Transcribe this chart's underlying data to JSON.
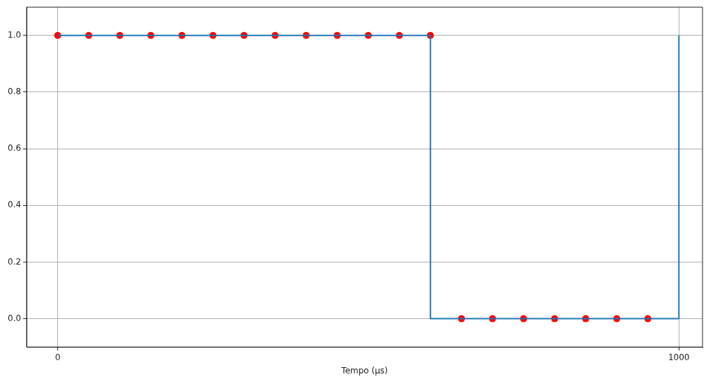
{
  "chart_data": {
    "type": "line",
    "xlabel": "Tempo (µs)",
    "xlim": [
      -50,
      1038
    ],
    "xticks": [
      0,
      1000
    ],
    "ylim": [
      -0.1,
      1.1
    ],
    "yticks": [
      {
        "value": 0,
        "label": "0.0"
      },
      {
        "value": 0.2,
        "label": "0.2"
      },
      {
        "value": 0.4,
        "label": "0.4"
      },
      {
        "value": 0.6,
        "label": "0.6"
      },
      {
        "value": 0.8,
        "label": "0.8"
      },
      {
        "value": 1,
        "label": "1.0"
      }
    ],
    "grid": true,
    "legend": false,
    "series": [
      {
        "type": "step",
        "color": "#1f77b4",
        "x": [
          0,
          600,
          1000
        ],
        "values": [
          1,
          0,
          1
        ]
      },
      {
        "type": "scatter",
        "color": "#ff0000",
        "marker": "circle",
        "x": [
          0,
          50,
          100,
          150,
          200,
          250,
          300,
          350,
          400,
          450,
          500,
          550,
          600,
          650,
          700,
          750,
          800,
          850,
          900,
          950
        ],
        "values": [
          1,
          1,
          1,
          1,
          1,
          1,
          1,
          1,
          1,
          1,
          1,
          1,
          1,
          0,
          0,
          0,
          0,
          0,
          0,
          0
        ]
      }
    ]
  }
}
